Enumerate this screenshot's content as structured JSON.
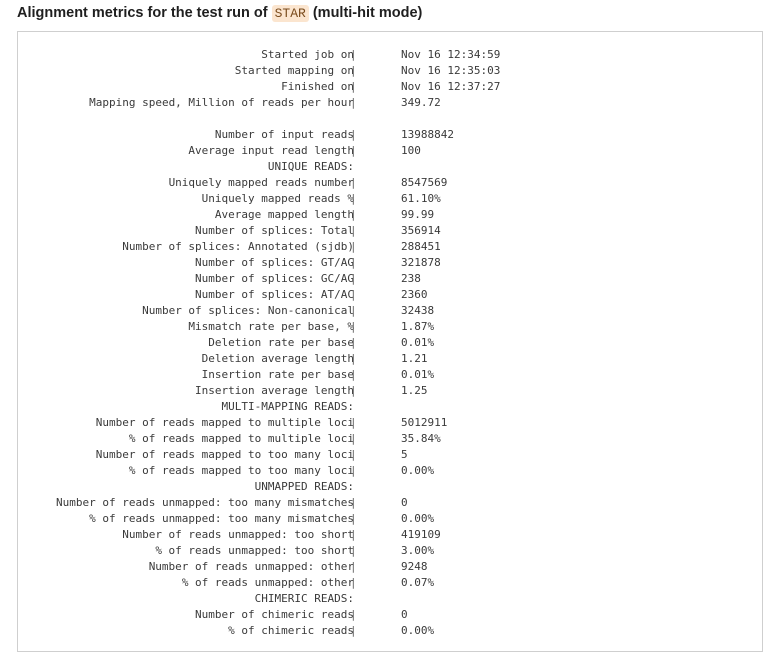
{
  "heading": {
    "prefix": "Alignment metrics for the test run of",
    "code": "STAR",
    "suffix": "(multi-hit mode)"
  },
  "metrics": [
    {
      "kind": "row",
      "label": "Started job on",
      "value": "Nov 16 12:34:59"
    },
    {
      "kind": "row",
      "label": "Started mapping on",
      "value": "Nov 16 12:35:03"
    },
    {
      "kind": "row",
      "label": "Finished on",
      "value": "Nov 16 12:37:27"
    },
    {
      "kind": "row",
      "label": "Mapping speed, Million of reads per hour",
      "value": "349.72"
    },
    {
      "kind": "blank"
    },
    {
      "kind": "row",
      "label": "Number of input reads",
      "value": "13988842"
    },
    {
      "kind": "row",
      "label": "Average input read length",
      "value": "100"
    },
    {
      "kind": "section",
      "label": "UNIQUE READS:"
    },
    {
      "kind": "row",
      "label": "Uniquely mapped reads number",
      "value": "8547569"
    },
    {
      "kind": "row",
      "label": "Uniquely mapped reads %",
      "value": "61.10%"
    },
    {
      "kind": "row",
      "label": "Average mapped length",
      "value": "99.99"
    },
    {
      "kind": "row",
      "label": "Number of splices: Total",
      "value": "356914"
    },
    {
      "kind": "row",
      "label": "Number of splices: Annotated (sjdb)",
      "value": "288451"
    },
    {
      "kind": "row",
      "label": "Number of splices: GT/AG",
      "value": "321878"
    },
    {
      "kind": "row",
      "label": "Number of splices: GC/AG",
      "value": "238"
    },
    {
      "kind": "row",
      "label": "Number of splices: AT/AC",
      "value": "2360"
    },
    {
      "kind": "row",
      "label": "Number of splices: Non-canonical",
      "value": "32438"
    },
    {
      "kind": "row",
      "label": "Mismatch rate per base, %",
      "value": "1.87%"
    },
    {
      "kind": "row",
      "label": "Deletion rate per base",
      "value": "0.01%"
    },
    {
      "kind": "row",
      "label": "Deletion average length",
      "value": "1.21"
    },
    {
      "kind": "row",
      "label": "Insertion rate per base",
      "value": "0.01%"
    },
    {
      "kind": "row",
      "label": "Insertion average length",
      "value": "1.25"
    },
    {
      "kind": "section",
      "label": "MULTI-MAPPING READS:"
    },
    {
      "kind": "row",
      "label": "Number of reads mapped to multiple loci",
      "value": "5012911"
    },
    {
      "kind": "row",
      "label": "% of reads mapped to multiple loci",
      "value": "35.84%"
    },
    {
      "kind": "row",
      "label": "Number of reads mapped to too many loci",
      "value": "5"
    },
    {
      "kind": "row",
      "label": "% of reads mapped to too many loci",
      "value": "0.00%"
    },
    {
      "kind": "section",
      "label": "UNMAPPED READS:"
    },
    {
      "kind": "row",
      "label": "Number of reads unmapped: too many mismatches",
      "value": "0"
    },
    {
      "kind": "row",
      "label": "% of reads unmapped: too many mismatches",
      "value": "0.00%"
    },
    {
      "kind": "row",
      "label": "Number of reads unmapped: too short",
      "value": "419109"
    },
    {
      "kind": "row",
      "label": "% of reads unmapped: too short",
      "value": "3.00%"
    },
    {
      "kind": "row",
      "label": "Number of reads unmapped: other",
      "value": "9248"
    },
    {
      "kind": "row",
      "label": "% of reads unmapped: other",
      "value": "0.07%"
    },
    {
      "kind": "section",
      "label": "CHIMERIC READS:"
    },
    {
      "kind": "row",
      "label": "Number of chimeric reads",
      "value": "0"
    },
    {
      "kind": "row",
      "label": "% of chimeric reads",
      "value": "0.00%"
    }
  ],
  "separator": "|"
}
